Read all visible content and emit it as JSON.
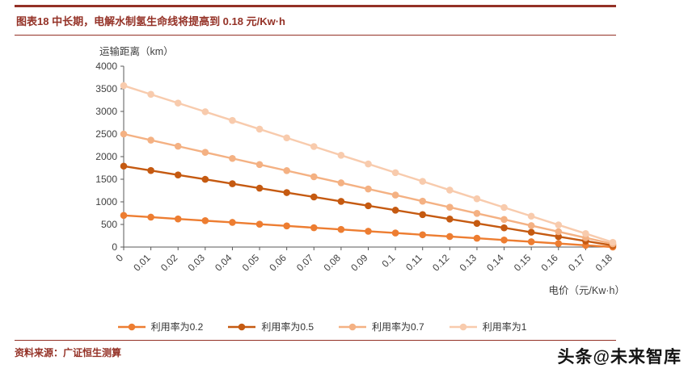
{
  "theme": {
    "accent": "#943126",
    "axis_color": "#595959",
    "tick_text_color": "#404040"
  },
  "header": {
    "title": "图表18 中长期，电解水制氢生命线将提高到 0.18 元/Kw·h"
  },
  "footer": {
    "source": "资料来源：广证恒生测算",
    "watermark": "头条@未来智库"
  },
  "chart_data": {
    "type": "line",
    "title": "",
    "ylabel": "运输距离（km）",
    "xlabel": "电价（元/Kw·h）",
    "ylim": [
      0,
      4000
    ],
    "yticks": [
      0,
      500,
      1000,
      1500,
      2000,
      2500,
      3000,
      3500,
      4000
    ],
    "x_labels": [
      "0",
      "0.01",
      "0.02",
      "0.03",
      "0.04",
      "0.05",
      "0.06",
      "0.07",
      "0.08",
      "0.09",
      "0.1",
      "0.11",
      "0.12",
      "0.13",
      "0.14",
      "0.15",
      "0.16",
      "0.17",
      "0.18"
    ],
    "grid": false,
    "legend_position": "bottom",
    "series": [
      {
        "name": "利用率为0.2",
        "color": "#ED7D31",
        "values": [
          700,
          661,
          622,
          583,
          545,
          506,
          467,
          428,
          389,
          350,
          311,
          272,
          233,
          195,
          156,
          117,
          78,
          39,
          0
        ]
      },
      {
        "name": "利用率为0.5",
        "color": "#C55A11",
        "values": [
          1790,
          1693,
          1595,
          1498,
          1400,
          1303,
          1205,
          1108,
          1010,
          913,
          815,
          718,
          620,
          523,
          425,
          328,
          230,
          133,
          35
        ]
      },
      {
        "name": "利用率为0.7",
        "color": "#F4B183",
        "values": [
          2500,
          2365,
          2230,
          2095,
          1960,
          1825,
          1690,
          1555,
          1420,
          1285,
          1150,
          1015,
          880,
          745,
          610,
          475,
          340,
          205,
          70
        ]
      },
      {
        "name": "利用率为1",
        "color": "#F8CBAD",
        "values": [
          3570,
          3378,
          3185,
          2993,
          2800,
          2608,
          2415,
          2223,
          2030,
          1838,
          1645,
          1453,
          1260,
          1068,
          875,
          683,
          490,
          298,
          105
        ]
      }
    ]
  }
}
